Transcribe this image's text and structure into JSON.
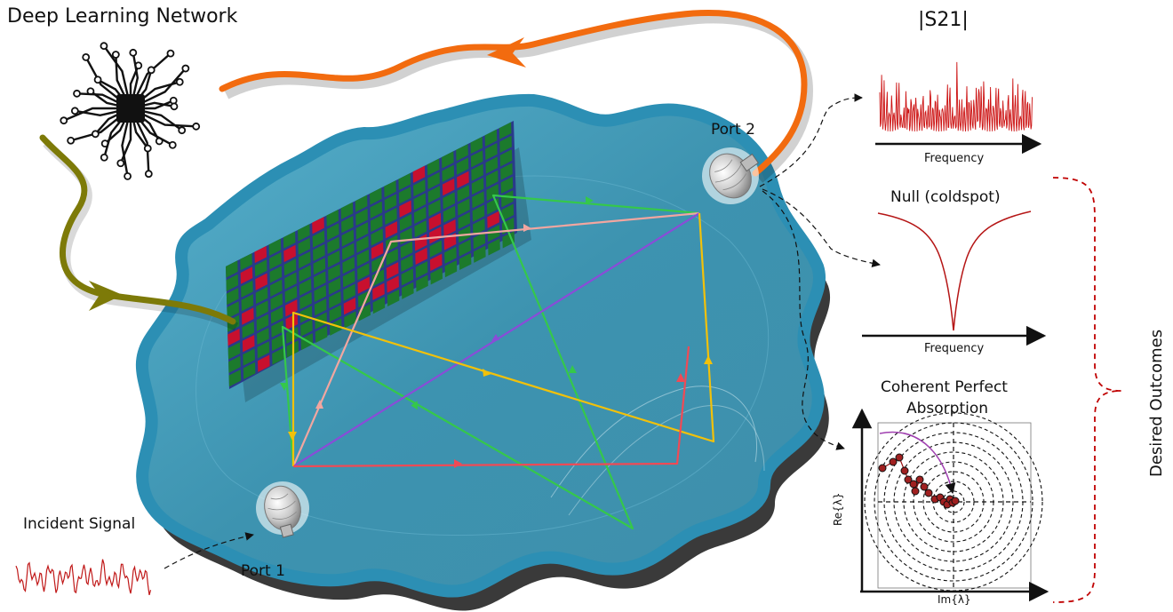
{
  "labels": {
    "title": "Deep Learning Network",
    "port1": "Port 1",
    "port2": "Port 2",
    "incident_signal": "Incident Signal",
    "s21": "|S21|",
    "frequency_1": "Frequency",
    "null_title": "Null (coldspot)",
    "frequency_2": "Frequency",
    "cpa_line1": "Coherent Perfect",
    "cpa_line2": "Absorption",
    "re_axis": "Re{λ}",
    "im_axis": "Im{λ}",
    "desired_outcomes": "Desired Outcomes"
  },
  "colors": {
    "cavity_fill": "#3f98b6",
    "cavity_rim": "#2c8fb4",
    "cavity_shadow": "#3a3a3a",
    "metasurface": "#1c7a2c",
    "metasurface_active": "#c8102e",
    "feedback_orange": "#f26b0f",
    "control_olive": "#7d7a08",
    "ray_green": "#35c84a",
    "ray_pink": "#f2a6a0",
    "ray_violet": "#8a4cd8",
    "ray_yellow": "#f2c10a",
    "ray_red": "#f04a55",
    "signal_red": "#c01818",
    "bracket_red": "#c00000"
  },
  "icons": [
    "neural-chip-icon",
    "antenna-dish-icon"
  ]
}
